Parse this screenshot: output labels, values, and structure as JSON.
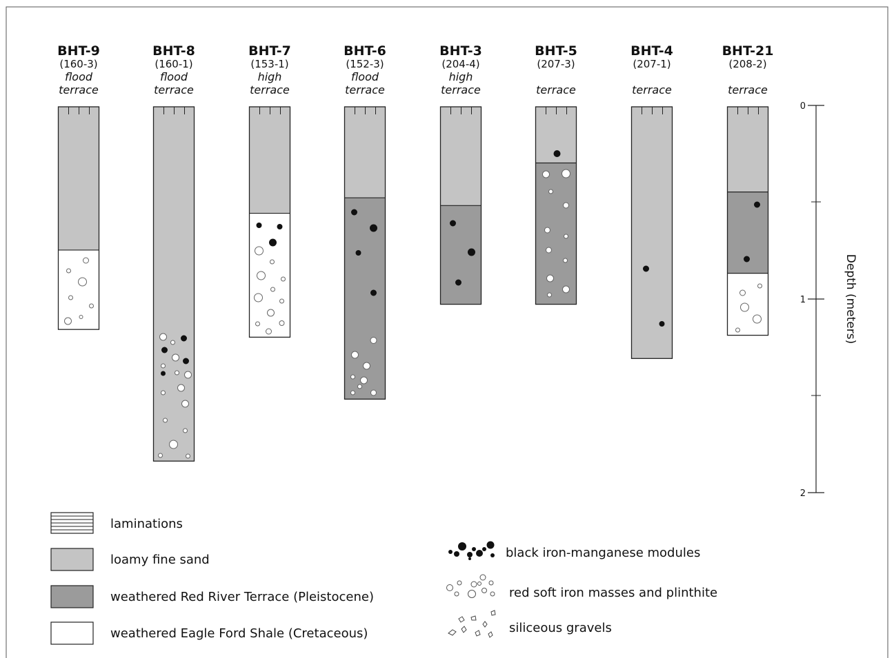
{
  "colors": {
    "loamy_fine_sand": "#c4c4c4",
    "red_river_terrace": "#9b9b9b",
    "eagle_ford_shale": "#ffffff",
    "outline": "#222222"
  },
  "columns": [
    {
      "name": "BHT-9",
      "id": "(160-3)",
      "desc": [
        "flood",
        "terrace"
      ],
      "depth_m": 1.15,
      "layers": [
        {
          "unit": "loamy_fine_sand",
          "top": 0,
          "bottom": 0.74
        },
        {
          "unit": "eagle_ford_shale",
          "top": 0.74,
          "bottom": 1.15
        }
      ],
      "markers": []
    },
    {
      "name": "BHT-8",
      "id": "(160-1)",
      "desc": [
        "flood",
        "terrace"
      ],
      "depth_m": 1.83,
      "layers": [
        {
          "unit": "loamy_fine_sand",
          "top": 0,
          "bottom": 1.83
        }
      ],
      "markers": []
    },
    {
      "name": "BHT-7",
      "id": "(153-1)",
      "desc": [
        "high",
        "terrace"
      ],
      "depth_m": 1.19,
      "layers": [
        {
          "unit": "loamy_fine_sand",
          "top": 0,
          "bottom": 0.55
        },
        {
          "unit": "eagle_ford_shale",
          "top": 0.55,
          "bottom": 1.19
        }
      ],
      "markers": []
    },
    {
      "name": "BHT-6",
      "id": "(152-3)",
      "desc": [
        "flood",
        "terrace"
      ],
      "depth_m": 1.51,
      "layers": [
        {
          "unit": "loamy_fine_sand",
          "top": 0,
          "bottom": 0.47
        },
        {
          "unit": "red_river_terrace",
          "top": 0.47,
          "bottom": 1.51
        }
      ],
      "markers": []
    },
    {
      "name": "BHT-3",
      "id": "(204-4)",
      "desc": [
        "high",
        "terrace"
      ],
      "depth_m": 1.02,
      "layers": [
        {
          "unit": "loamy_fine_sand",
          "top": 0,
          "bottom": 0.51
        },
        {
          "unit": "red_river_terrace",
          "top": 0.51,
          "bottom": 1.02
        }
      ],
      "markers": []
    },
    {
      "name": "BHT-5",
      "id": "(207-3)",
      "desc": [
        "",
        "terrace"
      ],
      "depth_m": 1.02,
      "layers": [
        {
          "unit": "loamy_fine_sand",
          "top": 0,
          "bottom": 0.29
        },
        {
          "unit": "red_river_terrace",
          "top": 0.29,
          "bottom": 1.02
        }
      ],
      "markers": []
    },
    {
      "name": "BHT-4",
      "id": "(207-1)",
      "desc": [
        "",
        "terrace"
      ],
      "depth_m": 1.3,
      "layers": [
        {
          "unit": "loamy_fine_sand",
          "top": 0,
          "bottom": 1.3
        }
      ],
      "markers": []
    },
    {
      "name": "BHT-21",
      "id": "(208-2)",
      "desc": [
        "",
        "terrace"
      ],
      "depth_m": 1.18,
      "layers": [
        {
          "unit": "loamy_fine_sand",
          "top": 0,
          "bottom": 0.44
        },
        {
          "unit": "red_river_terrace",
          "top": 0.44,
          "bottom": 0.86
        },
        {
          "unit": "eagle_ford_shale",
          "top": 0.86,
          "bottom": 1.18
        }
      ],
      "markers": []
    }
  ],
  "depth_axis": {
    "title": "Depth (meters)",
    "range": [
      0,
      2
    ],
    "tick_labels": [
      "0",
      "1",
      "2"
    ]
  },
  "legend": {
    "left": [
      {
        "key": "laminations",
        "label": "laminations"
      },
      {
        "key": "loamy_fine_sand",
        "label": "loamy fine sand"
      },
      {
        "key": "red_river_terrace",
        "label": "weathered Red River Terrace (Pleistocene)"
      },
      {
        "key": "eagle_ford_shale",
        "label": "weathered Eagle Ford Shale (Cretaceous)"
      }
    ],
    "right": [
      {
        "key": "black_nodules",
        "label": "black iron-manganese modules"
      },
      {
        "key": "red_masses",
        "label": "red soft iron masses and plinthite"
      },
      {
        "key": "siliceous_gravels",
        "label": "siliceous gravels"
      }
    ]
  }
}
